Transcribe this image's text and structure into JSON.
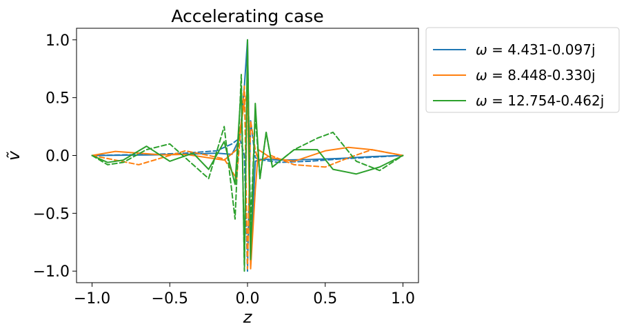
{
  "chart_data": {
    "type": "line",
    "title": "Accelerating case",
    "xlabel": "z",
    "ylabel": "ṽ",
    "xlim": [
      -1.1,
      1.1
    ],
    "ylim": [
      -1.1,
      1.1
    ],
    "xticks": [
      -1.0,
      -0.5,
      0.0,
      0.5,
      1.0
    ],
    "xtick_labels": [
      "−1.0",
      "−0.5",
      "0.0",
      "0.5",
      "1.0"
    ],
    "yticks": [
      -1.0,
      -0.5,
      0.0,
      0.5,
      1.0
    ],
    "ytick_labels": [
      "−1.0",
      "−0.5",
      "0.0",
      "0.5",
      "1.0"
    ],
    "grid": false,
    "legend_placement": "outside-right",
    "line_styles": {
      "solid": "real part",
      "dashed": "imaginary part"
    },
    "series": [
      {
        "name": "ω = 4.431-0.097j",
        "label_prefix": "ω = ",
        "label_value": "4.431-0.097j",
        "color": "#1f77b4",
        "z": [
          -1.0,
          -0.8,
          -0.6,
          -0.4,
          -0.2,
          -0.1,
          -0.05,
          -0.02,
          0.0,
          0.02,
          0.05,
          0.1,
          0.2,
          0.4,
          0.6,
          0.8,
          1.0
        ],
        "real": [
          0.0,
          0.002,
          0.005,
          0.01,
          0.02,
          0.01,
          0.15,
          0.6,
          1.0,
          -0.9,
          -0.05,
          -0.03,
          -0.04,
          -0.035,
          -0.025,
          -0.01,
          0.0
        ],
        "imag": [
          0.0,
          0.005,
          0.01,
          0.02,
          0.04,
          0.1,
          0.15,
          0.0,
          -1.0,
          0.3,
          -0.02,
          -0.04,
          -0.06,
          -0.05,
          -0.03,
          -0.015,
          0.0
        ]
      },
      {
        "name": "ω = 8.448-0.330j",
        "label_prefix": "ω = ",
        "label_value": "8.448-0.330j",
        "color": "#ff7f0e",
        "z": [
          -1.0,
          -0.85,
          -0.7,
          -0.55,
          -0.4,
          -0.25,
          -0.15,
          -0.07,
          -0.02,
          0.0,
          0.02,
          0.05,
          0.07,
          0.15,
          0.3,
          0.5,
          0.65,
          0.8,
          1.0
        ],
        "real": [
          0.0,
          0.035,
          0.02,
          0.005,
          0.01,
          -0.02,
          -0.04,
          0.05,
          0.45,
          0.55,
          -0.98,
          -0.3,
          0.05,
          -0.02,
          -0.05,
          0.04,
          0.07,
          0.05,
          0.0
        ],
        "imag": [
          0.0,
          -0.04,
          -0.08,
          -0.02,
          0.04,
          0.0,
          -0.03,
          -0.2,
          0.6,
          -0.98,
          0.3,
          0.05,
          -0.05,
          0.0,
          -0.08,
          -0.1,
          -0.02,
          0.05,
          0.0
        ]
      },
      {
        "name": "ω = 12.754-0.462j",
        "label_prefix": "ω = ",
        "label_value": "12.754-0.462j",
        "color": "#2ca02c",
        "z": [
          -1.0,
          -0.9,
          -0.8,
          -0.65,
          -0.5,
          -0.35,
          -0.25,
          -0.15,
          -0.08,
          -0.04,
          -0.02,
          0.0,
          0.02,
          0.05,
          0.08,
          0.12,
          0.16,
          0.3,
          0.45,
          0.55,
          0.7,
          0.85,
          1.0
        ],
        "real": [
          0.0,
          -0.06,
          -0.04,
          0.08,
          -0.05,
          0.02,
          -0.12,
          0.12,
          -0.25,
          0.6,
          -0.95,
          1.0,
          -0.9,
          0.45,
          -0.2,
          0.2,
          -0.1,
          0.05,
          0.05,
          -0.12,
          -0.16,
          -0.1,
          0.0
        ],
        "imag": [
          0.0,
          -0.08,
          -0.06,
          0.05,
          0.1,
          -0.08,
          -0.2,
          0.25,
          -0.55,
          0.7,
          -1.0,
          0.9,
          -0.6,
          0.35,
          -0.2,
          0.2,
          -0.1,
          0.05,
          0.15,
          0.2,
          -0.05,
          -0.13,
          0.0
        ]
      }
    ]
  }
}
